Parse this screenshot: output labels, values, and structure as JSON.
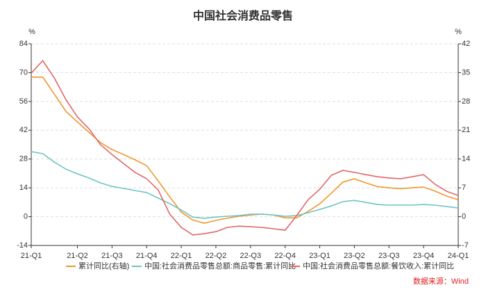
{
  "chart_data": {
    "type": "line",
    "title": "中国社会消费品零售",
    "y_label": "%",
    "y2_label": "%",
    "source": "数据来源：Wind",
    "categories": [
      "21-Q1",
      null,
      null,
      null,
      "21-Q2",
      null,
      null,
      "21-Q3",
      null,
      null,
      "21-Q4",
      null,
      null,
      "22-Q1",
      null,
      null,
      "22-Q2",
      null,
      null,
      "22-Q3",
      null,
      null,
      "22-Q4",
      null,
      null,
      "23-Q1",
      null,
      null,
      "23-Q2",
      null,
      null,
      "23-Q3",
      null,
      null,
      "23-Q4",
      null,
      null,
      "24-Q1"
    ],
    "ylim": [
      -14,
      84
    ],
    "yticks": [
      -14,
      0,
      14,
      28,
      42,
      56,
      70,
      84
    ],
    "y2lim": [
      -7,
      42
    ],
    "y2ticks": [
      -7,
      0,
      7,
      14,
      21,
      28,
      35,
      42
    ],
    "grid": true,
    "series": [
      {
        "name": "累计同比(右轴)",
        "color": "#f0962a",
        "axis": "y2",
        "values": [
          33.9,
          33.9,
          29.8,
          25.6,
          23.0,
          20.5,
          18.0,
          16.3,
          15.1,
          13.8,
          12.4,
          8.7,
          4.8,
          1.1,
          -0.8,
          -1.6,
          -0.9,
          -0.4,
          0.1,
          0.4,
          0.6,
          0.4,
          -0.3,
          -0.3,
          1.3,
          3.1,
          5.7,
          8.4,
          9.2,
          8.2,
          7.3,
          7.0,
          6.8,
          7.0,
          7.2,
          6.2,
          5.0,
          4.1
        ]
      },
      {
        "name": "中国:社会消费品零售总额:商品零售:累计同比",
        "color": "#6cc4c4",
        "values": [
          31.6,
          30.6,
          26.5,
          23.1,
          20.8,
          18.8,
          16.4,
          14.7,
          13.7,
          12.7,
          11.7,
          9.0,
          6.3,
          3.2,
          -0.2,
          -0.8,
          -0.2,
          0.2,
          0.5,
          1.2,
          1.2,
          0.8,
          0.2,
          0.5,
          1.9,
          3.5,
          5.2,
          7.3,
          7.9,
          6.9,
          5.9,
          5.6,
          5.6,
          5.6,
          5.9,
          5.6,
          4.9,
          4.2
        ]
      },
      {
        "name": "中国:社会消费品零售总额:餐饮收入:累计同比",
        "color": "#e06666",
        "values": [
          69.8,
          75.8,
          67.4,
          56.9,
          48.5,
          42.7,
          35.0,
          30.2,
          25.8,
          21.5,
          18.4,
          13.0,
          1.2,
          -5.2,
          -8.9,
          -8.3,
          -7.3,
          -5.2,
          -4.6,
          -4.9,
          -5.2,
          -5.9,
          -6.6,
          0.5,
          8.3,
          13.3,
          20.1,
          22.5,
          21.5,
          20.4,
          19.4,
          18.8,
          18.4,
          19.4,
          20.4,
          15.7,
          12.3,
          10.3
        ]
      }
    ]
  }
}
